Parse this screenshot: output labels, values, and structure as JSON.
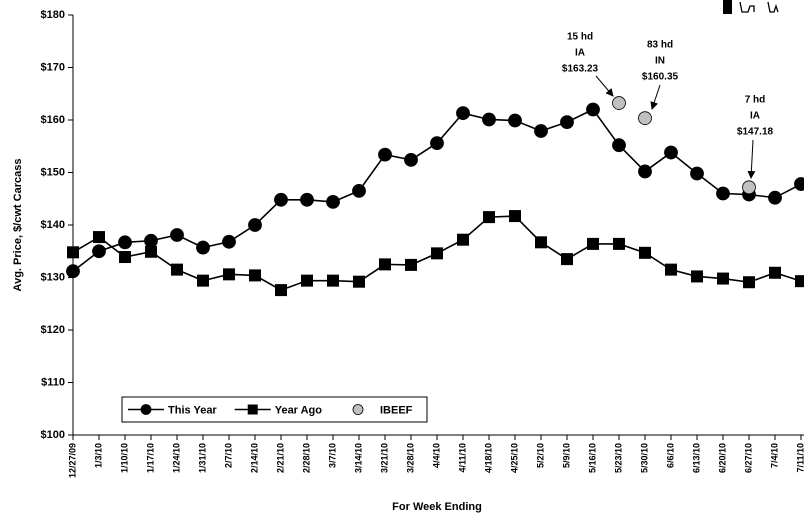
{
  "chart_data": {
    "type": "line",
    "ylabel": "Avg. Price, $/cwt Carcass",
    "xlabel": "For Week Ending",
    "categories": [
      "12/27/09",
      "1/3/10",
      "1/10/10",
      "1/17/10",
      "1/24/10",
      "1/31/10",
      "2/7/10",
      "2/14/10",
      "2/21/10",
      "2/28/10",
      "3/7/10",
      "3/14/10",
      "3/21/10",
      "3/28/10",
      "4/4/10",
      "4/11/10",
      "4/18/10",
      "4/25/10",
      "5/2/10",
      "5/9/10",
      "5/16/10",
      "5/23/10",
      "5/30/10",
      "6/6/10",
      "6/13/10",
      "6/20/10",
      "6/27/10",
      "7/4/10",
      "7/11/10"
    ],
    "series": [
      {
        "name": "This Year",
        "color": "#000000",
        "marker": "circle",
        "values": [
          131.2,
          135,
          136.7,
          137,
          138.1,
          135.7,
          136.8,
          140,
          144.8,
          144.8,
          144.4,
          146.5,
          153.4,
          152.4,
          155.6,
          161.3,
          160.1,
          159.9,
          157.9,
          159.6,
          162,
          155.2,
          150.2,
          153.8,
          149.8,
          146,
          145.8,
          145.2,
          147.8
        ]
      },
      {
        "name": "Year Ago",
        "color": "#000000",
        "marker": "square",
        "values": [
          134.8,
          137.7,
          133.9,
          134.9,
          131.5,
          129.4,
          130.6,
          130.4,
          127.6,
          129.4,
          129.4,
          129.2,
          132.5,
          132.4,
          134.6,
          137.2,
          141.5,
          141.7,
          136.7,
          133.5,
          136.4,
          136.4,
          134.7,
          131.5,
          130.2,
          129.8,
          129.1,
          130.9,
          129.3
        ]
      },
      {
        "name": "IBEEF",
        "color": "#c0c0c0",
        "marker": "circle",
        "line": false,
        "values": [
          null,
          null,
          null,
          null,
          null,
          null,
          null,
          null,
          null,
          null,
          null,
          null,
          null,
          null,
          null,
          null,
          null,
          null,
          null,
          null,
          null,
          163.23,
          160.35,
          null,
          null,
          null,
          147.18,
          null,
          null
        ],
        "value_labels": [
          null,
          null,
          null,
          null,
          null,
          null,
          null,
          null,
          null,
          null,
          null,
          null,
          null,
          null,
          null,
          null,
          null,
          null,
          null,
          null,
          null,
          "$163.23",
          "$160.35",
          null,
          null,
          null,
          "$147.18",
          null,
          null
        ]
      }
    ],
    "annotations": [
      [
        "15 hd",
        "IA"
      ],
      [
        "83 hd",
        "IN"
      ],
      [
        "7 hd",
        "IA"
      ]
    ],
    "ylim": [
      100,
      180
    ],
    "yticks": [
      {
        "value": 100,
        "label": "$100"
      },
      {
        "value": 110,
        "label": "$110"
      },
      {
        "value": 120,
        "label": "$120"
      },
      {
        "value": 130,
        "label": "$130"
      },
      {
        "value": 140,
        "label": "$140"
      },
      {
        "value": 150,
        "label": "$150"
      },
      {
        "value": 160,
        "label": "$160"
      },
      {
        "value": 170,
        "label": "$170"
      },
      {
        "value": 180,
        "label": "$180"
      }
    ],
    "grid": false,
    "legend": "lower left"
  }
}
